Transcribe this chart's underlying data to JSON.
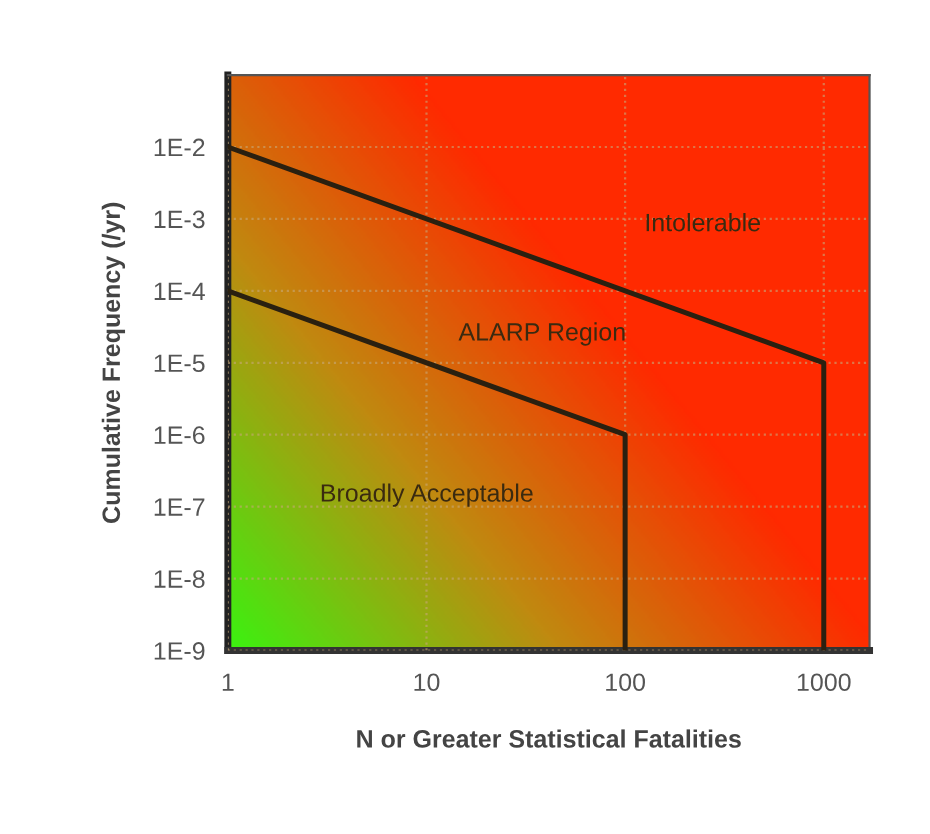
{
  "chart_data": {
    "type": "line",
    "xlabel": "N or Greater Statistical Fatalities",
    "ylabel": "Cumulative Frequency (/yr)",
    "log": "xy",
    "xlim": [
      1,
      1700
    ],
    "ylim": [
      1e-09,
      0.1
    ],
    "xticks": [
      1,
      10,
      100,
      1000
    ],
    "yticks": [
      {
        "value": 1e-09,
        "label": "1E-9"
      },
      {
        "value": 1e-08,
        "label": "1E-8"
      },
      {
        "value": 1e-07,
        "label": "1E-7"
      },
      {
        "value": 1e-06,
        "label": "1E-6"
      },
      {
        "value": 1e-05,
        "label": "1E-5"
      },
      {
        "value": 0.0001,
        "label": "1E-4"
      },
      {
        "value": 0.001,
        "label": "1E-3"
      },
      {
        "value": 0.01,
        "label": "1E-2"
      }
    ],
    "grid": true,
    "marker": "none",
    "line_style": "solid",
    "series": [
      {
        "color": "#2a2010",
        "x": [
          1,
          1000,
          1000
        ],
        "values": [
          0.01,
          1e-05,
          1e-09
        ]
      },
      {
        "color": "#2a2010",
        "x": [
          1,
          100,
          100
        ],
        "values": [
          0.0001,
          1e-06,
          1e-09
        ]
      }
    ],
    "annotations": [
      "Intolerable",
      "ALARP Region",
      "Broadly Acceptable"
    ]
  }
}
